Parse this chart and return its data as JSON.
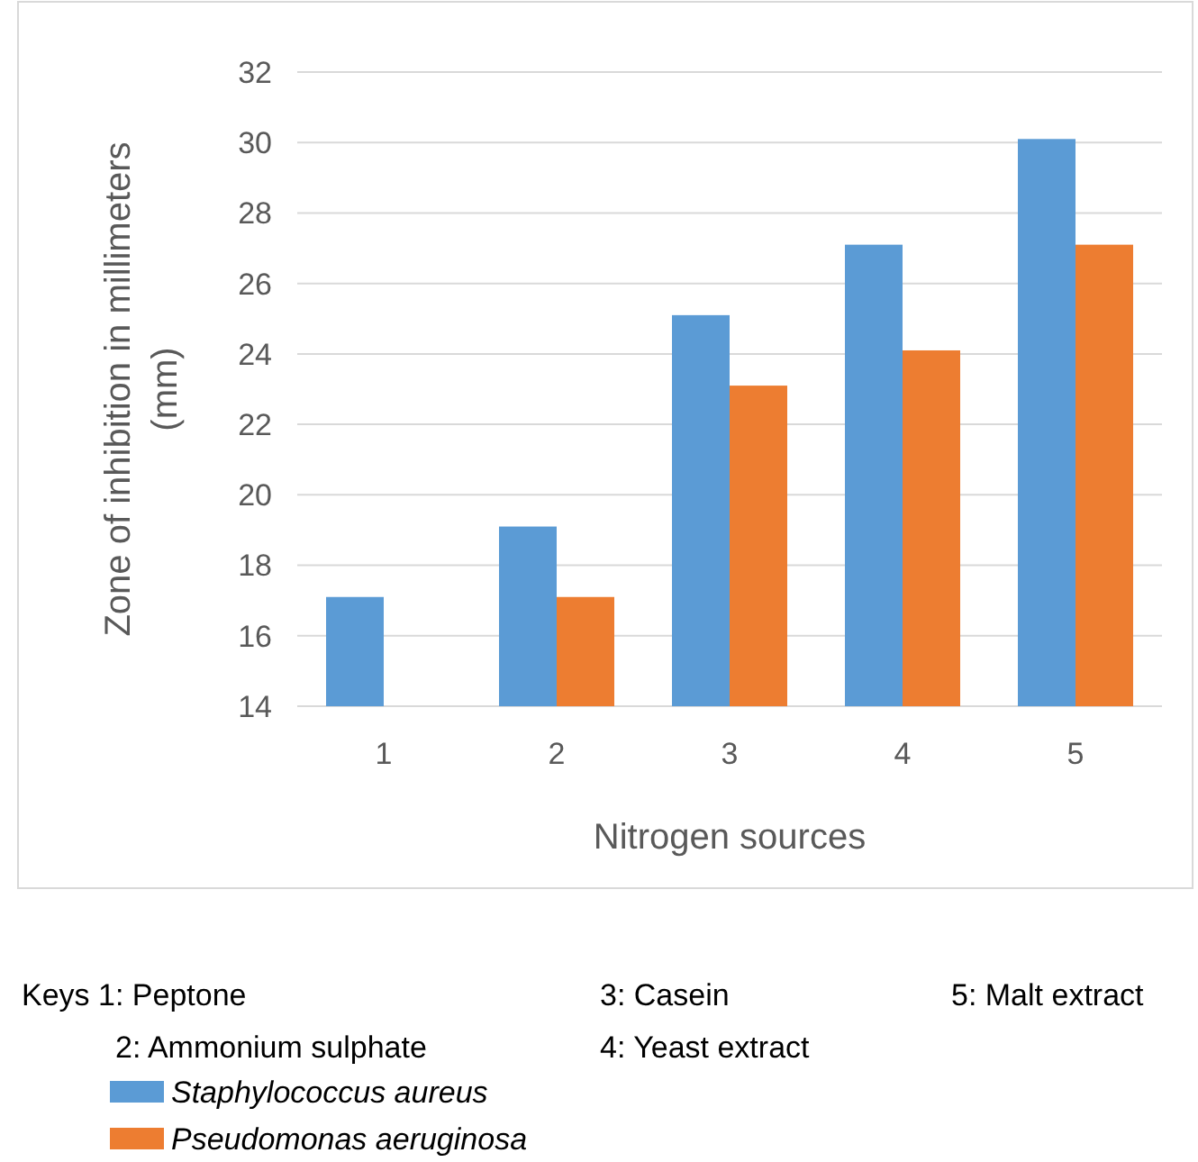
{
  "chart_data": {
    "type": "bar",
    "xlabel": "Nitrogen sources",
    "ylabel": "Zone of inhibition in millimeters (mm)",
    "categories": [
      "1",
      "2",
      "3",
      "4",
      "5"
    ],
    "series": [
      {
        "name": "Staphylococcus aureus",
        "color": "#5b9bd5",
        "values": [
          17.1,
          19.1,
          25.1,
          27.1,
          30.1
        ]
      },
      {
        "name": "Pseudomonas aeruginosa",
        "color": "#ed7d31",
        "values": [
          null,
          17.1,
          23.1,
          24.1,
          27.1
        ]
      }
    ],
    "ylim": [
      14,
      32
    ],
    "yticks": [
      14,
      16,
      18,
      20,
      22,
      24,
      26,
      28,
      30,
      32
    ],
    "grid": "y",
    "legend": "bottom",
    "annotations": [
      "Keys 1: Peptone",
      "3: Casein",
      "5: Malt extract",
      "2: Ammonium sulphate",
      "4: Yeast extract"
    ]
  }
}
